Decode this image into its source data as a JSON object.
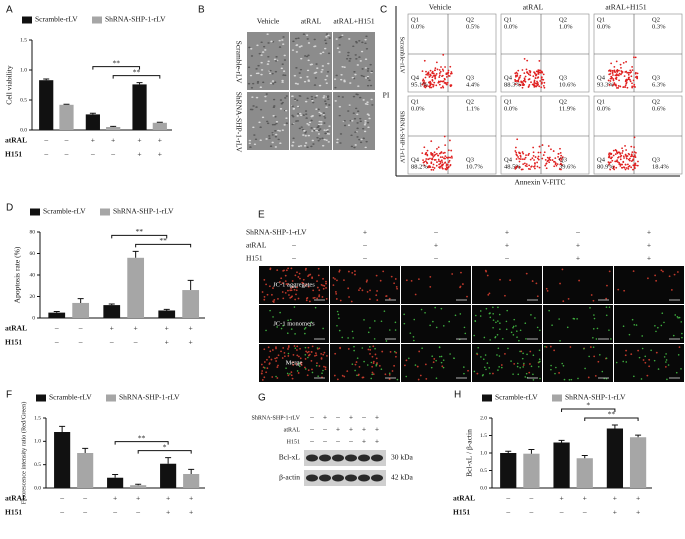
{
  "chart_data": [
    {
      "type": "bar",
      "label": "A",
      "ylabel": "Cell viability",
      "ylim": [
        0,
        1.5
      ],
      "yticks": [
        {
          "value": 0,
          "label": "0.0"
        },
        {
          "value": 0.5,
          "label": "0.5"
        },
        {
          "value": 1,
          "label": "1.0"
        },
        {
          "value": 1.5,
          "label": "1.5"
        }
      ],
      "series": [
        {
          "name": "Scramble-rLV",
          "color": "#111111",
          "values": [
            0.83,
            0.26,
            0.76
          ],
          "errors": [
            0.02,
            0.02,
            0.03
          ]
        },
        {
          "name": "ShRNA-SHP-1-rLV",
          "color": "#a6a6a6",
          "values": [
            0.42,
            0.05,
            0.12
          ],
          "errors": [
            0.01,
            0.01,
            0.01
          ]
        }
      ],
      "conditions": [
        {
          "name": "atRAL",
          "values": [
            "–",
            "–",
            "+",
            "+",
            "+",
            "+"
          ]
        },
        {
          "name": "H151",
          "values": [
            "–",
            "–",
            "–",
            "–",
            "+",
            "+"
          ]
        }
      ],
      "annotations": [
        "**",
        "**"
      ]
    },
    {
      "type": "bar",
      "label": "D",
      "ylabel": "Apoptosis rate (%)",
      "ylim": [
        0,
        80
      ],
      "yticks": [
        0,
        20,
        40,
        60,
        80
      ],
      "series": [
        {
          "name": "Scramble-rLV",
          "color": "#111111",
          "values": [
            5,
            12,
            7
          ],
          "errors": [
            1,
            1,
            1
          ]
        },
        {
          "name": "ShRNA-SHP-1-rLV",
          "color": "#a6a6a6",
          "values": [
            14,
            56,
            26
          ],
          "errors": [
            4,
            6,
            9
          ]
        }
      ],
      "conditions": [
        {
          "name": "atRAL",
          "values": [
            "–",
            "–",
            "+",
            "+",
            "+",
            "+"
          ]
        },
        {
          "name": "H151",
          "values": [
            "–",
            "–",
            "–",
            "–",
            "+",
            "+"
          ]
        }
      ],
      "annotations": [
        "**",
        "**"
      ]
    },
    {
      "type": "bar",
      "label": "F",
      "ylabel": "Fluorescence intensity ratio (Red/Green)",
      "ylim": [
        0,
        1.5
      ],
      "yticks": [
        {
          "value": 0,
          "label": "0.0"
        },
        {
          "value": 0.5,
          "label": "0.5"
        },
        {
          "value": 1,
          "label": "1.0"
        },
        {
          "value": 1.5,
          "label": "1.5"
        }
      ],
      "series": [
        {
          "name": "Scramble-rLV",
          "color": "#111111",
          "values": [
            1.2,
            0.22,
            0.52
          ],
          "errors": [
            0.12,
            0.07,
            0.13
          ]
        },
        {
          "name": "ShRNA-SHP-1-rLV",
          "color": "#a6a6a6",
          "values": [
            0.75,
            0.06,
            0.3
          ],
          "errors": [
            0.1,
            0.02,
            0.1
          ]
        }
      ],
      "conditions": [
        {
          "name": "atRAL",
          "values": [
            "–",
            "–",
            "+",
            "+",
            "+",
            "+"
          ]
        },
        {
          "name": "H151",
          "values": [
            "–",
            "–",
            "–",
            "–",
            "+",
            "+"
          ]
        }
      ],
      "annotations": [
        "**",
        "*"
      ]
    },
    {
      "type": "bar",
      "label": "H",
      "ylabel": "Bcl-xL / β-actin",
      "ylim": [
        0,
        2
      ],
      "yticks": [
        {
          "value": 0,
          "label": "0.0"
        },
        {
          "value": 0.5,
          "label": "0.5"
        },
        {
          "value": 1,
          "label": "1.0"
        },
        {
          "value": 1.5,
          "label": "1.5"
        },
        {
          "value": 2,
          "label": "2.0"
        }
      ],
      "series": [
        {
          "name": "Scramble-rLV",
          "color": "#111111",
          "values": [
            1.0,
            1.3,
            1.7
          ],
          "errors": [
            0.05,
            0.06,
            0.1
          ]
        },
        {
          "name": "ShRNA-SHP-1-rLV",
          "color": "#a6a6a6",
          "values": [
            0.98,
            0.85,
            1.45
          ],
          "errors": [
            0.12,
            0.08,
            0.06
          ]
        }
      ],
      "conditions": [
        {
          "name": "atRAL",
          "values": [
            "–",
            "–",
            "+",
            "+",
            "+",
            "+"
          ]
        },
        {
          "name": "H151",
          "values": [
            "–",
            "–",
            "–",
            "–",
            "+",
            "+"
          ]
        }
      ],
      "annotations": [
        "*",
        "**"
      ]
    }
  ],
  "panel_b": {
    "label": "B",
    "columns": [
      "Vehicle",
      "atRAL",
      "atRAL+H151"
    ],
    "rows": [
      "Scramble-rLV",
      "ShRNA-SHP-1-rLV"
    ]
  },
  "panel_c": {
    "label": "C",
    "columns": [
      "Vehicle",
      "atRAL",
      "atRAL+H151"
    ],
    "rows": [
      "Scramble-rLV",
      "ShRNA-SHP-1-rLV"
    ],
    "y_axis": "PI",
    "x_axis": "Annexin V-FITC",
    "quadrants": [
      "Q1",
      "Q2",
      "Q4",
      "Q3"
    ],
    "plots": [
      [
        [
          "0.0%",
          "0.5%",
          "95.1%",
          "4.4%"
        ],
        [
          "0.0%",
          "1.0%",
          "88.3%",
          "10.6%"
        ],
        [
          "0.0%",
          "0.3%",
          "93.3%",
          "6.3%"
        ]
      ],
      [
        [
          "0.0%",
          "1.1%",
          "88.2%",
          "10.7%"
        ],
        [
          "0.0%",
          "11.9%",
          "48.5%",
          "39.6%"
        ],
        [
          "0.0%",
          "0.6%",
          "80.9%",
          "18.4%"
        ]
      ]
    ]
  },
  "panel_e": {
    "label": "E",
    "conditions": [
      {
        "name": "ShRNA-SHP-1-rLV",
        "values": [
          "–",
          "+",
          "–",
          "+",
          "–",
          "+"
        ]
      },
      {
        "name": "atRAL",
        "values": [
          "–",
          "–",
          "+",
          "+",
          "+",
          "+"
        ]
      },
      {
        "name": "H151",
        "values": [
          "–",
          "–",
          "–",
          "–",
          "+",
          "+"
        ]
      }
    ],
    "rows": [
      "JC-1 aggregates",
      "JC-1 monomers",
      "Merge"
    ]
  },
  "panel_g": {
    "label": "G",
    "conditions": [
      {
        "name": "ShRNA-SHP-1-rLV",
        "values": [
          "–",
          "+",
          "–",
          "+",
          "–",
          "+"
        ]
      },
      {
        "name": "atRAL",
        "values": [
          "–",
          "–",
          "+",
          "+",
          "+",
          "+"
        ]
      },
      {
        "name": "H151",
        "values": [
          "–",
          "–",
          "–",
          "–",
          "+",
          "+"
        ]
      }
    ],
    "bands": [
      {
        "name": "Bcl-xL",
        "size": "30 kDa"
      },
      {
        "name": "β-actin",
        "size": "42 kDa"
      }
    ]
  }
}
